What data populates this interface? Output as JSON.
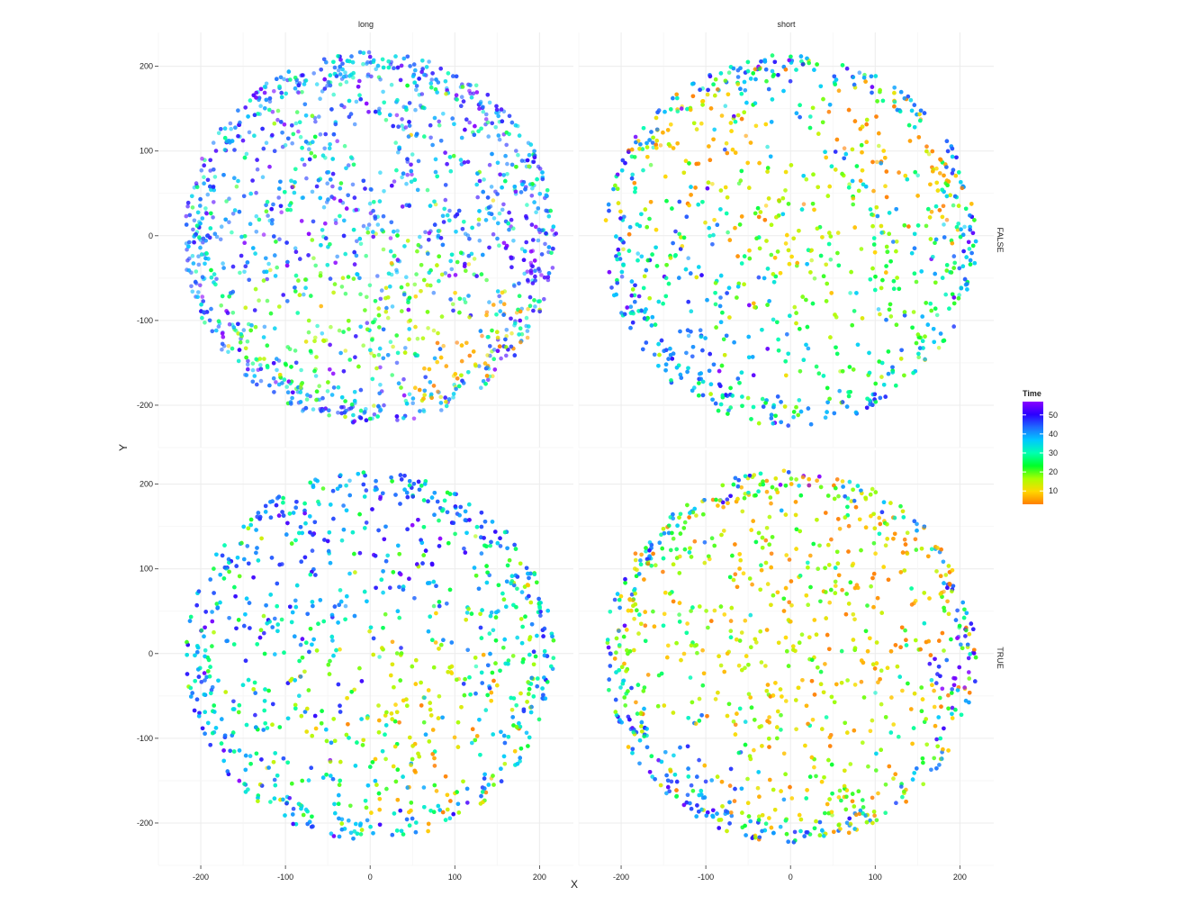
{
  "chart_data": {
    "type": "scatter",
    "title": "",
    "xlabel": "X",
    "ylabel": "Y",
    "xlim": [
      -250,
      240
    ],
    "ylim": [
      -250,
      240
    ],
    "x_ticks": [
      -200,
      -100,
      0,
      100,
      200
    ],
    "y_ticks": [
      -200,
      -100,
      0,
      100,
      200
    ],
    "grid": true,
    "facet_columns": [
      "long",
      "short"
    ],
    "facet_rows": [
      "FALSE",
      "TRUE"
    ],
    "legend": {
      "title": "Time",
      "position": "right",
      "range": [
        3,
        57
      ],
      "ticks": [
        10,
        20,
        30,
        40,
        50
      ],
      "color_scale": [
        "#ff7f00",
        "#ffd700",
        "#a8ff00",
        "#00ff2a",
        "#00ffb0",
        "#00c8ff",
        "#1e6bff",
        "#2a00ff",
        "#8a00ff"
      ]
    },
    "panels": [
      {
        "column": "long",
        "row": "FALSE",
        "circle_center": [
          0,
          -3
        ],
        "circle_radius": 220,
        "hole_center": [
          5,
          110
        ],
        "hole_radius": 25,
        "dominant_time": 40,
        "clusters": [
          {
            "x": 110,
            "y": -130,
            "time": 8,
            "spread": 55
          },
          {
            "x": 70,
            "y": -90,
            "time": 18,
            "spread": 60
          },
          {
            "x": -60,
            "y": -110,
            "time": 20,
            "spread": 60
          },
          {
            "x": 185,
            "y": -35,
            "time": 52,
            "spread": 20
          }
        ]
      },
      {
        "column": "short",
        "row": "FALSE",
        "circle_center": [
          0,
          -5
        ],
        "circle_radius": 220,
        "hole_center": [
          5,
          110
        ],
        "hole_radius": 25,
        "dominant_time": 32,
        "clusters": [
          {
            "x": 130,
            "y": 100,
            "time": 6,
            "spread": 60
          },
          {
            "x": -110,
            "y": 110,
            "time": 8,
            "spread": 55
          },
          {
            "x": 20,
            "y": 10,
            "time": 14,
            "spread": 80
          },
          {
            "x": 60,
            "y": -60,
            "time": 20,
            "spread": 70
          },
          {
            "x": -140,
            "y": -140,
            "time": 42,
            "spread": 45
          }
        ]
      },
      {
        "column": "long",
        "row": "TRUE",
        "circle_center": [
          0,
          -3
        ],
        "circle_radius": 218,
        "hole_center": [
          5,
          105
        ],
        "hole_radius": 10,
        "dominant_time": 32,
        "clusters": [
          {
            "x": 100,
            "y": -140,
            "time": 6,
            "spread": 50
          },
          {
            "x": 40,
            "y": -60,
            "time": 14,
            "spread": 75
          },
          {
            "x": -100,
            "y": 100,
            "time": 44,
            "spread": 60
          },
          {
            "x": 20,
            "y": 150,
            "time": 48,
            "spread": 55
          }
        ]
      },
      {
        "column": "short",
        "row": "TRUE",
        "circle_center": [
          0,
          -3
        ],
        "circle_radius": 220,
        "hole_center": [
          10,
          105
        ],
        "hole_radius": 10,
        "dominant_time": 16,
        "clusters": [
          {
            "x": 130,
            "y": 100,
            "time": 6,
            "spread": 55
          },
          {
            "x": 0,
            "y": -30,
            "time": 12,
            "spread": 90
          },
          {
            "x": -120,
            "y": -130,
            "time": 42,
            "spread": 55
          },
          {
            "x": 190,
            "y": -20,
            "time": 50,
            "spread": 25
          }
        ]
      }
    ]
  }
}
